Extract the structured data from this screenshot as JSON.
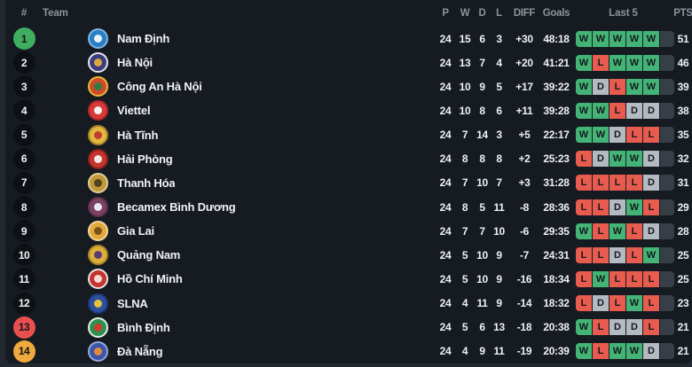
{
  "header": {
    "rank": "#",
    "team": "Team",
    "p": "P",
    "w": "W",
    "d": "D",
    "l": "L",
    "diff": "DIFF",
    "goals": "Goals",
    "last5": "Last 5",
    "pts": "PTS"
  },
  "colors": {
    "win": "#44b476",
    "draw": "#b3bac1",
    "loss": "#e85b4f",
    "empty_slot": "#363e47",
    "leader_badge": "#3fae5f",
    "rank13_badge": "#e94f4f",
    "rank14_badge": "#f0a93c",
    "background": "#161b21",
    "page_background": "#232931"
  },
  "rows": [
    {
      "rank": "1",
      "rank_type": "leader",
      "team": "Nam Định",
      "p": "24",
      "w": "15",
      "d": "6",
      "l": "3",
      "diff": "+30",
      "goals": "48:18",
      "last5": [
        "W",
        "W",
        "W",
        "W",
        "W"
      ],
      "pts": "51",
      "logo": [
        "#2a7fc4",
        "#eaf3fb",
        "#7db6e3"
      ]
    },
    {
      "rank": "2",
      "rank_type": "none",
      "team": "Hà Nội",
      "p": "24",
      "w": "13",
      "d": "7",
      "l": "4",
      "diff": "+20",
      "goals": "41:21",
      "last5": [
        "W",
        "L",
        "W",
        "W",
        "W"
      ],
      "pts": "46",
      "logo": [
        "#3d3c7c",
        "#d9a93e",
        "#e6e4ef"
      ]
    },
    {
      "rank": "3",
      "rank_type": "none",
      "team": "Công An Hà Nội",
      "p": "24",
      "w": "10",
      "d": "9",
      "l": "5",
      "diff": "+17",
      "goals": "39:22",
      "last5": [
        "W",
        "D",
        "L",
        "W",
        "W"
      ],
      "pts": "39",
      "logo": [
        "#cf4a2b",
        "#2f7d3f",
        "#e9b93c"
      ]
    },
    {
      "rank": "4",
      "rank_type": "none",
      "team": "Viettel",
      "p": "24",
      "w": "10",
      "d": "8",
      "l": "6",
      "diff": "+11",
      "goals": "39:28",
      "last5": [
        "W",
        "W",
        "L",
        "D",
        "D"
      ],
      "pts": "38",
      "logo": [
        "#d63b38",
        "#f4f4f4",
        "#b3262a"
      ]
    },
    {
      "rank": "5",
      "rank_type": "none",
      "team": "Hà Tĩnh",
      "p": "24",
      "w": "7",
      "d": "14",
      "l": "3",
      "diff": "+5",
      "goals": "22:17",
      "last5": [
        "W",
        "W",
        "D",
        "L",
        "L"
      ],
      "pts": "35",
      "logo": [
        "#e0b93c",
        "#c23b35",
        "#a8822a"
      ]
    },
    {
      "rank": "6",
      "rank_type": "none",
      "team": "Hải Phòng",
      "p": "24",
      "w": "8",
      "d": "8",
      "l": "8",
      "diff": "+2",
      "goals": "25:23",
      "last5": [
        "L",
        "D",
        "W",
        "W",
        "D"
      ],
      "pts": "32",
      "logo": [
        "#c5332e",
        "#f1e9e8",
        "#8e201d"
      ]
    },
    {
      "rank": "7",
      "rank_type": "none",
      "team": "Thanh Hóa",
      "p": "24",
      "w": "7",
      "d": "10",
      "l": "7",
      "diff": "+3",
      "goals": "31:28",
      "last5": [
        "L",
        "L",
        "L",
        "L",
        "D"
      ],
      "pts": "31",
      "logo": [
        "#c0983a",
        "#4f4520",
        "#e0cf9a"
      ]
    },
    {
      "rank": "8",
      "rank_type": "none",
      "team": "Becamex Bình Dương",
      "p": "24",
      "w": "8",
      "d": "5",
      "l": "11",
      "diff": "-8",
      "goals": "28:36",
      "last5": [
        "L",
        "L",
        "D",
        "W",
        "L"
      ],
      "pts": "29",
      "logo": [
        "#7c4163",
        "#e8e8ee",
        "#5c2f4a"
      ]
    },
    {
      "rank": "9",
      "rank_type": "none",
      "team": "Gia Lai",
      "p": "24",
      "w": "7",
      "d": "7",
      "l": "10",
      "diff": "-6",
      "goals": "29:35",
      "last5": [
        "W",
        "L",
        "W",
        "L",
        "D"
      ],
      "pts": "28",
      "logo": [
        "#e2a93c",
        "#7c5218",
        "#f1d79e"
      ]
    },
    {
      "rank": "10",
      "rank_type": "none",
      "team": "Quảng Nam",
      "p": "24",
      "w": "5",
      "d": "10",
      "l": "9",
      "diff": "-7",
      "goals": "24:31",
      "last5": [
        "L",
        "L",
        "D",
        "L",
        "W"
      ],
      "pts": "25",
      "logo": [
        "#ddb138",
        "#5c3a78",
        "#a8842a"
      ]
    },
    {
      "rank": "11",
      "rank_type": "none",
      "team": "Hồ Chí Minh",
      "p": "24",
      "w": "5",
      "d": "10",
      "l": "9",
      "diff": "-16",
      "goals": "18:34",
      "last5": [
        "L",
        "W",
        "L",
        "L",
        "L"
      ],
      "pts": "25",
      "logo": [
        "#c5332e",
        "#f5dbd8",
        "#e3e3e6"
      ]
    },
    {
      "rank": "12",
      "rank_type": "none",
      "team": "SLNA",
      "p": "24",
      "w": "4",
      "d": "11",
      "l": "9",
      "diff": "-14",
      "goals": "18:32",
      "last5": [
        "L",
        "D",
        "L",
        "W",
        "L"
      ],
      "pts": "23",
      "logo": [
        "#2e4f9d",
        "#e5c23c",
        "#1d3b7c"
      ]
    },
    {
      "rank": "13",
      "rank_type": "danger",
      "team": "Bình Định",
      "p": "24",
      "w": "5",
      "d": "6",
      "l": "13",
      "diff": "-18",
      "goals": "20:38",
      "last5": [
        "W",
        "L",
        "D",
        "D",
        "L"
      ],
      "pts": "21",
      "logo": [
        "#2e8f4e",
        "#d23a30",
        "#e2efe6"
      ]
    },
    {
      "rank": "14",
      "rank_type": "warn",
      "team": "Đà Nẵng",
      "p": "24",
      "w": "4",
      "d": "9",
      "l": "11",
      "diff": "-19",
      "goals": "20:39",
      "last5": [
        "W",
        "L",
        "W",
        "W",
        "D"
      ],
      "pts": "21",
      "logo": [
        "#3b55a8",
        "#e28a3c",
        "#97a8d8"
      ]
    }
  ]
}
